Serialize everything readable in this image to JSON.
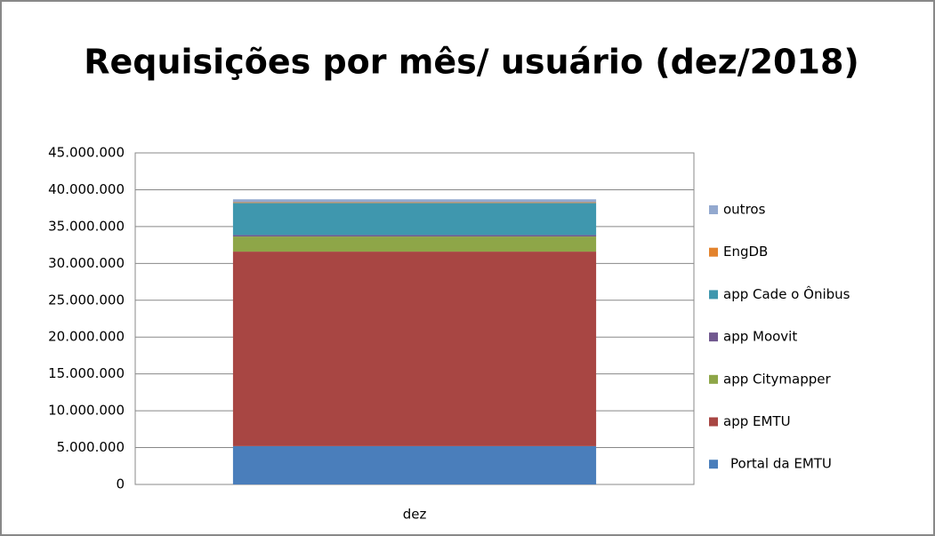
{
  "chart_data": {
    "type": "stacked_bar",
    "title": "Requisições por mês/ usuário (dez/2018)",
    "categories": [
      "dez"
    ],
    "series": [
      {
        "name": "Portal da EMTU",
        "color": "#4a7ebb",
        "values": [
          5200000
        ]
      },
      {
        "name": "app EMTU",
        "color": "#a84643",
        "values": [
          26400000
        ]
      },
      {
        "name": "app Citymapper",
        "color": "#8ea648",
        "values": [
          2050000
        ]
      },
      {
        "name": "app Moovit",
        "color": "#71588f",
        "values": [
          200000
        ]
      },
      {
        "name": "app Cade o Ônibus",
        "color": "#3f97ae",
        "values": [
          4350000
        ]
      },
      {
        "name": "EngDB",
        "color": "#e3832d",
        "values": [
          100000
        ]
      },
      {
        "name": "outros",
        "color": "#93a9cf",
        "values": [
          400000
        ]
      }
    ],
    "ylim": [
      0,
      45000000
    ],
    "yticks": [
      0,
      {
        "value": 5000000,
        "label": "5.000.000"
      },
      {
        "value": 10000000,
        "label": "10.000.000"
      },
      {
        "value": 15000000,
        "label": "15.000.000"
      },
      {
        "value": 20000000,
        "label": "20.000.000"
      },
      {
        "value": 25000000,
        "label": "25.000.000"
      },
      {
        "value": 30000000,
        "label": "30.000.000"
      },
      {
        "value": 35000000,
        "label": "35.000.000"
      },
      {
        "value": 40000000,
        "label": "40.000.000"
      },
      {
        "value": 45000000,
        "label": "45.000.000"
      }
    ],
    "grid": true,
    "legend": "right"
  }
}
